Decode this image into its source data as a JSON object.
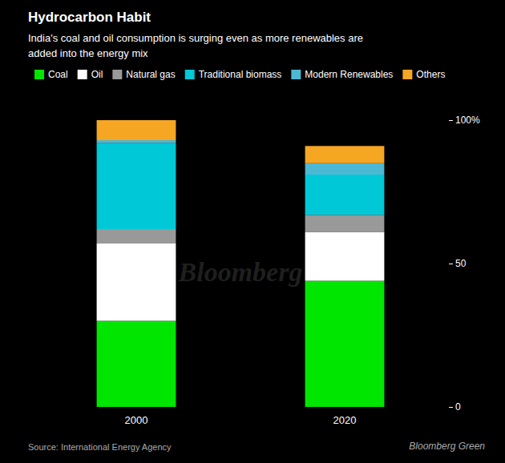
{
  "chart_data": {
    "type": "bar",
    "title": "Hydrocarbon Habit",
    "subtitle": "India's coal and oil consumption is surging even as more renewables are\nadded into the energy mix",
    "source": "Source: International Energy Agency",
    "annotations": [
      "Bloomberg Green",
      "Bloomberg"
    ],
    "categories": [
      "2000",
      "2020"
    ],
    "series": [
      {
        "name": "Coal",
        "color": "#00e600",
        "values": [
          30,
          44
        ]
      },
      {
        "name": "Oil",
        "color": "#ffffff",
        "values": [
          27,
          17
        ]
      },
      {
        "name": "Natural gas",
        "color": "#999999",
        "values": [
          5,
          6
        ]
      },
      {
        "name": "Traditional biomass",
        "color": "#00c8d7",
        "values": [
          30,
          14
        ]
      },
      {
        "name": "Modern Renewables",
        "color": "#4db8d4",
        "values": [
          1,
          4
        ]
      },
      {
        "name": "Others",
        "color": "#f5a623",
        "values": [
          7,
          6
        ]
      }
    ],
    "stacked": true,
    "ylim": [
      0,
      100
    ],
    "yticks": [
      0,
      50,
      {
        "value": 100,
        "label": "100%"
      }
    ],
    "grid": false,
    "legend": "top left"
  }
}
